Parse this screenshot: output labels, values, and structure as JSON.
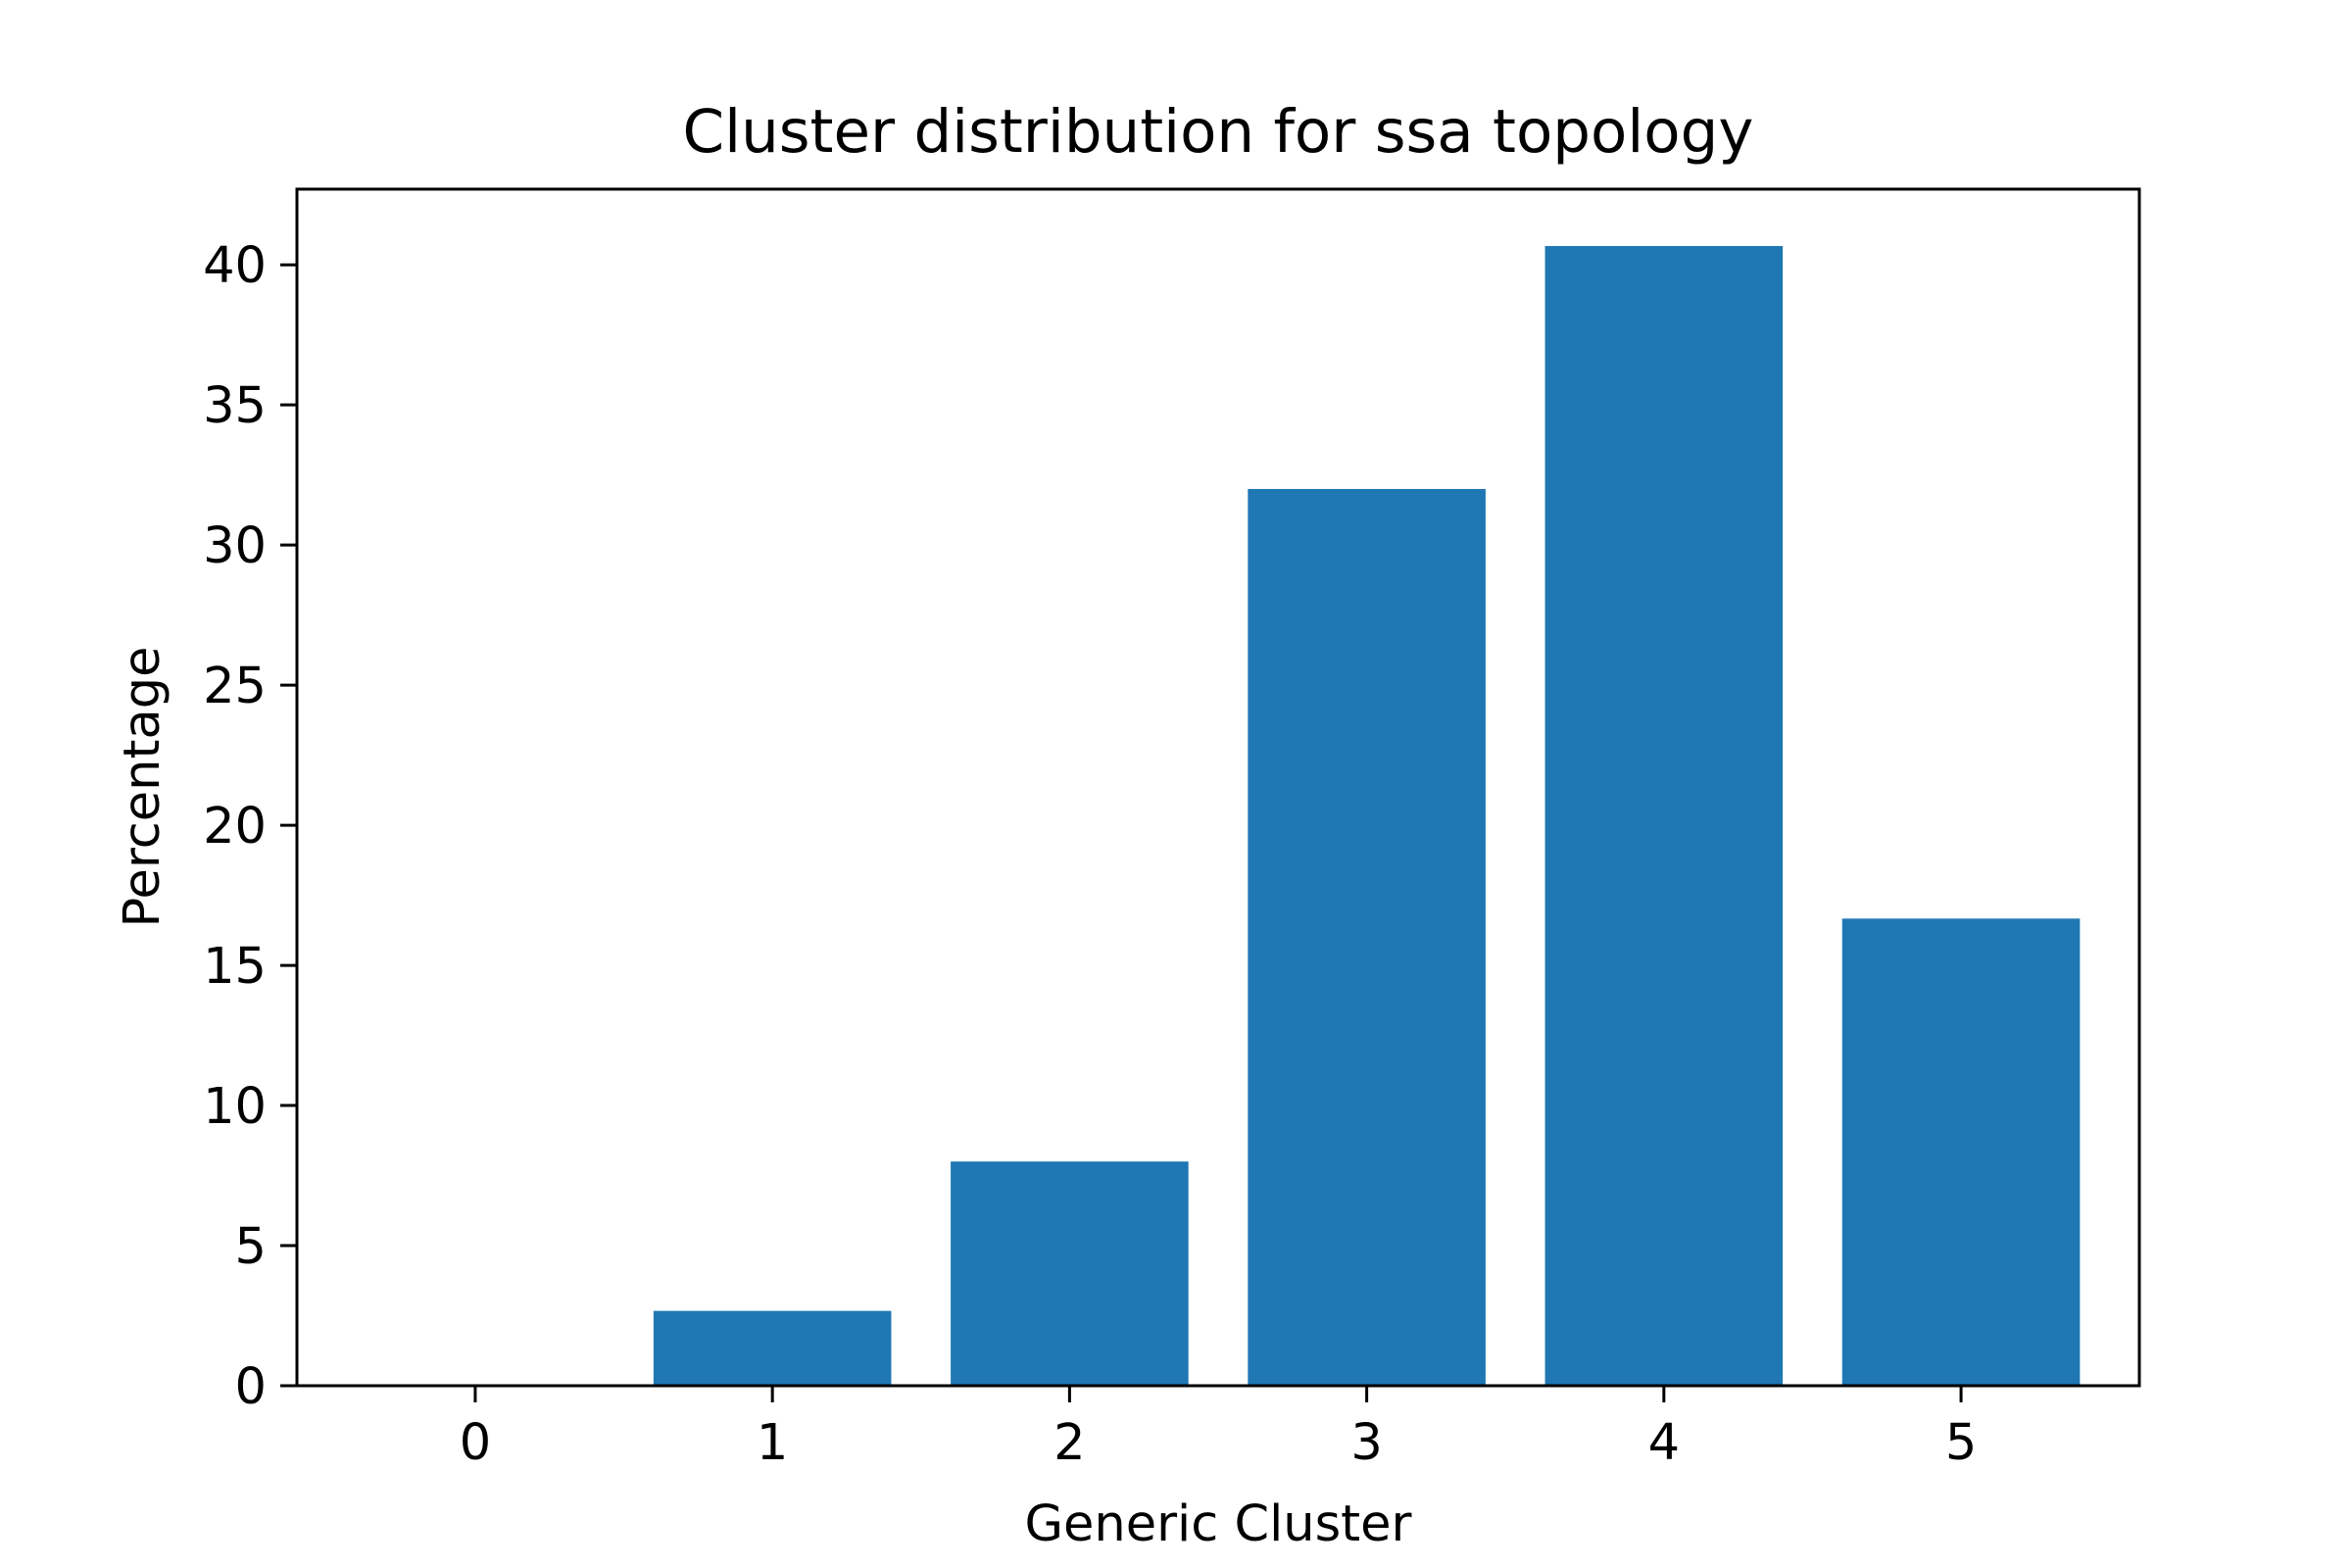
{
  "chart_data": {
    "type": "bar",
    "title": "Cluster distribution for ssa topology",
    "xlabel": "Generic Cluster",
    "ylabel": "Percentage",
    "categories": [
      "0",
      "1",
      "2",
      "3",
      "4",
      "5"
    ],
    "values": [
      0.0,
      2.67,
      8.0,
      32.0,
      40.67,
      16.67
    ],
    "ylim": [
      0,
      42.7
    ],
    "yticks": [
      "0",
      "5",
      "10",
      "15",
      "20",
      "25",
      "30",
      "35",
      "40"
    ],
    "grid": false,
    "bar_color": "#1f77b4"
  }
}
